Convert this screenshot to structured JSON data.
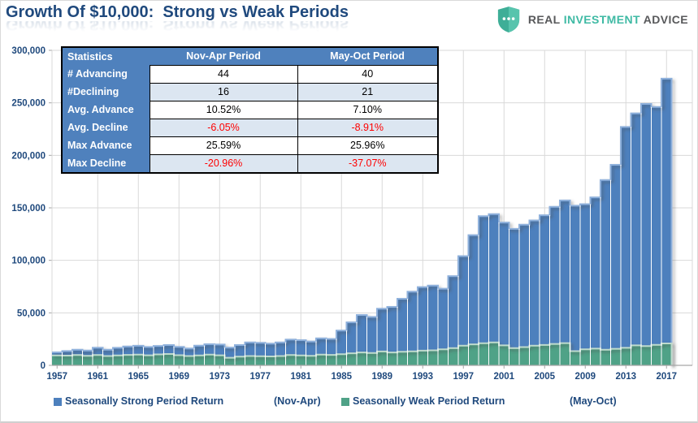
{
  "header": {
    "title": "Growth Of $10,000:  Strong vs Weak Periods",
    "logo": {
      "word1": "REAL",
      "word2": "INVESTMENT",
      "word3": "ADVICE"
    }
  },
  "colors": {
    "navy_text": "#1F497D",
    "strong_blue": "#4D80BD",
    "strong_blue_cap": "#8FB1DC",
    "weak_green": "#4FA287",
    "weak_green_cap": "#BEDACD",
    "table_header_blue": "#4F81BD",
    "table_alt_row": "#DCE6F1",
    "negative_red": "#FF0000",
    "logo_teal": "#3FBAA4",
    "logo_gray": "#58595B",
    "gridline_gray": "#D9D9D9"
  },
  "stats_table": {
    "headers": [
      "Statistics",
      "Nov-Apr Period",
      "May-Oct Period"
    ],
    "rows": [
      {
        "label": "# Advancing",
        "nov_apr": "44",
        "may_oct": "40"
      },
      {
        "label": "#Declining",
        "nov_apr": "16",
        "may_oct": "21"
      },
      {
        "label": "Avg. Advance",
        "nov_apr": "10.52%",
        "may_oct": "7.10%"
      },
      {
        "label": "Avg. Decline",
        "nov_apr": "-6.05%",
        "may_oct": "-8.91%"
      },
      {
        "label": "Max Advance",
        "nov_apr": "25.59%",
        "may_oct": "25.96%"
      },
      {
        "label": "Max Decline",
        "nov_apr": "-20.96%",
        "may_oct": "-37.07%"
      }
    ]
  },
  "legend": {
    "items": [
      {
        "label": "Seasonally Strong Period Return",
        "period": "(Nov-Apr)",
        "color": "#4D80BD"
      },
      {
        "label": "Seasonally Weak Period Return",
        "period": "(May-Oct)",
        "color": "#4FA287"
      }
    ]
  },
  "chart_data": {
    "type": "bar",
    "title": "Growth Of $10,000: Strong vs Weak Periods",
    "xlabel": "",
    "ylabel": "",
    "ylim": [
      0,
      300000
    ],
    "grid": true,
    "legend_position": "bottom",
    "y_ticks": [
      0,
      50000,
      100000,
      150000,
      200000,
      250000,
      300000
    ],
    "y_tick_labels": [
      "0",
      "50,000",
      "100,000",
      "150,000",
      "200,000",
      "250,000",
      "300,000"
    ],
    "x_ticks": [
      1957,
      1961,
      1965,
      1969,
      1973,
      1977,
      1981,
      1985,
      1989,
      1993,
      1997,
      2001,
      2005,
      2009,
      2013,
      2017
    ],
    "x": [
      1957,
      1958,
      1959,
      1960,
      1961,
      1962,
      1963,
      1964,
      1965,
      1966,
      1967,
      1968,
      1969,
      1970,
      1971,
      1972,
      1973,
      1974,
      1975,
      1976,
      1977,
      1978,
      1979,
      1980,
      1981,
      1982,
      1983,
      1984,
      1985,
      1986,
      1987,
      1988,
      1989,
      1990,
      1991,
      1992,
      1993,
      1994,
      1995,
      1996,
      1997,
      1998,
      1999,
      2000,
      2001,
      2002,
      2003,
      2004,
      2005,
      2006,
      2007,
      2008,
      2009,
      2010,
      2011,
      2012,
      2013,
      2014,
      2015,
      2016,
      2017
    ],
    "series": [
      {
        "name": "Seasonally Strong Period Return (Nov-Apr)",
        "color": "#4D80BD",
        "cap_color": "#8FB1DC",
        "values": [
          12400,
          13600,
          14900,
          14100,
          16800,
          14900,
          16700,
          18000,
          18600,
          17500,
          18500,
          19300,
          17600,
          16100,
          18800,
          20100,
          19800,
          16900,
          19300,
          21900,
          21400,
          20700,
          21900,
          24500,
          24000,
          22700,
          25700,
          25100,
          33200,
          41000,
          47900,
          46100,
          54000,
          55700,
          63400,
          70200,
          74500,
          76000,
          73000,
          85000,
          104000,
          124000,
          142000,
          144000,
          136000,
          130000,
          134000,
          138000,
          143000,
          151000,
          157000,
          152000,
          153500,
          160000,
          176500,
          191000,
          227000,
          240000,
          249000,
          246000,
          273000
        ]
      },
      {
        "name": "Seasonally Weak Period Return (May-Oct)",
        "color": "#4FA287",
        "cap_color": "#BEDACD",
        "values": [
          9500,
          9300,
          9800,
          9100,
          9800,
          8900,
          9400,
          10000,
          10300,
          9600,
          10400,
          10800,
          9700,
          8900,
          9500,
          10200,
          9600,
          7300,
          8300,
          8900,
          8700,
          8500,
          8900,
          9900,
          9400,
          9100,
          10300,
          10000,
          10700,
          11500,
          12300,
          11800,
          13200,
          12300,
          13000,
          13400,
          14000,
          14300,
          15200,
          16400,
          18800,
          20000,
          21000,
          21800,
          19000,
          16500,
          17400,
          18800,
          19400,
          20400,
          21200,
          13500,
          15300,
          15900,
          14900,
          15800,
          16700,
          19000,
          18400,
          19500,
          20900
        ]
      }
    ]
  }
}
